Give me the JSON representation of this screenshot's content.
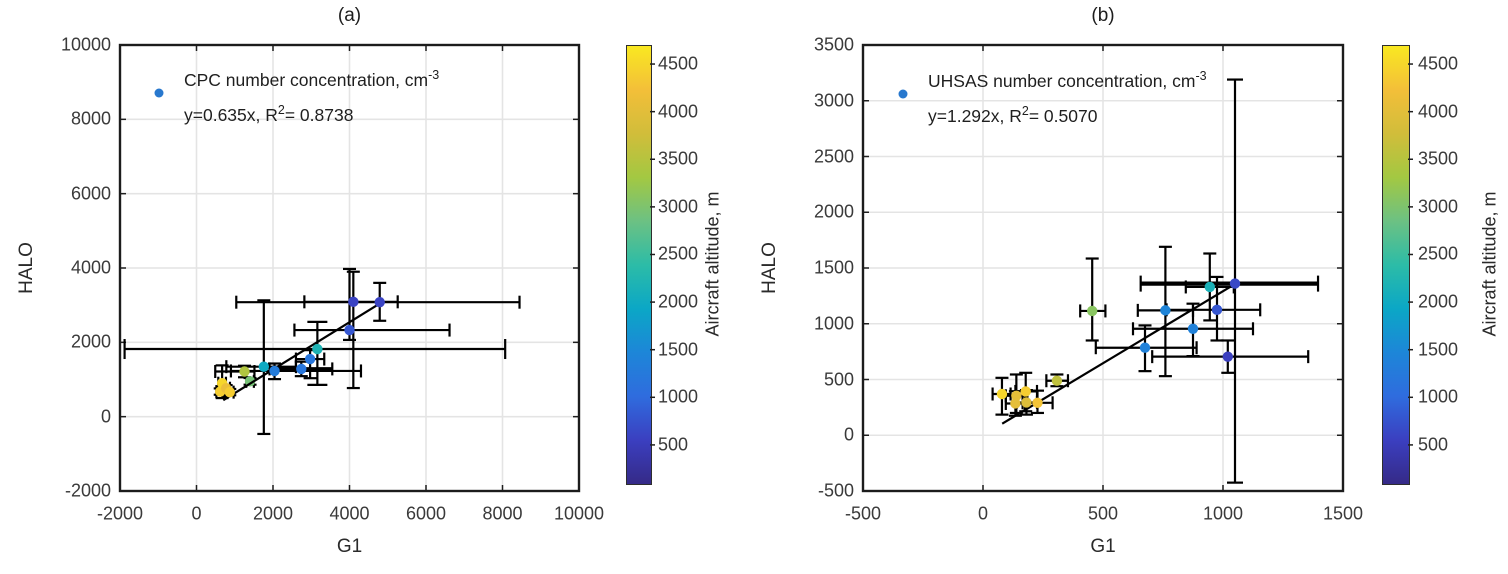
{
  "figure": {
    "background": "#ffffff"
  },
  "colors": {
    "axis_box": "#1c1c1c",
    "grid": "#e4e4e4",
    "tick_mark": "#1f1f1f",
    "tick_label": "#3a3a3a",
    "errorbar": "#000000",
    "fit_line": "#000000",
    "legend_marker": "#2878ce"
  },
  "parula_stops": [
    "#352a87",
    "#3b3fc0",
    "#2f6cde",
    "#1d86d8",
    "#0ba7c6",
    "#2cbca7",
    "#6cc183",
    "#a3c842",
    "#d1bd3a",
    "#f3bf39",
    "#f9e821"
  ],
  "colorbar": {
    "label": "Aircraft altitude, m",
    "vmin": 100,
    "vmax": 4700,
    "ticks": [
      500,
      1000,
      1500,
      2000,
      2500,
      3000,
      3500,
      4000,
      4500
    ]
  },
  "chart_data": [
    {
      "type": "scatter",
      "panel": "a",
      "title": "(a)",
      "xlabel": "G1",
      "ylabel": "HALO",
      "xlim": [
        -2000,
        10000
      ],
      "ylim": [
        -2000,
        10000
      ],
      "xticks": [
        -2000,
        0,
        2000,
        4000,
        6000,
        8000,
        10000
      ],
      "yticks": [
        -2000,
        0,
        2000,
        4000,
        6000,
        8000,
        10000
      ],
      "grid": true,
      "legend": {
        "marker_color": "#2878ce",
        "series": "CPC number concentration, cm",
        "series_sup": "-3",
        "fit": "y=0.635x, R",
        "fit_sup": "2",
        "fit_rest": "= 0.8738"
      },
      "fit_line": {
        "slope": 0.635,
        "x_start": 700,
        "x_end": 4790
      },
      "points": [
        {
          "x": 620,
          "y": 675,
          "alt": 4400,
          "xe": [
            520,
            720
          ],
          "ye": [
            590,
            760
          ]
        },
        {
          "x": 670,
          "y": 900,
          "alt": 4500,
          "xe": [
            570,
            770
          ],
          "ye": [
            500,
            1380
          ]
        },
        {
          "x": 775,
          "y": 765,
          "alt": 4150,
          "xe": [
            675,
            875
          ],
          "ye": [
            680,
            850
          ]
        },
        {
          "x": 870,
          "y": 660,
          "alt": 4400,
          "xe": [
            770,
            970
          ],
          "ye": [
            575,
            745
          ]
        },
        {
          "x": 1255,
          "y": 1215,
          "alt": 3450,
          "xe": [
            490,
            1515
          ],
          "ye": [
            1060,
            1370
          ]
        },
        {
          "x": 1400,
          "y": 950,
          "alt": 2950,
          "xe": [
            1300,
            1500
          ],
          "ye": [
            860,
            1040
          ],
          "under": true
        },
        {
          "x": 1760,
          "y": 1345,
          "alt": 2000,
          "xe": [
            780,
            2600
          ],
          "ye": [
            -465,
            3130
          ]
        },
        {
          "x": 2040,
          "y": 1230,
          "alt": 1300,
          "xe": [
            900,
            4300
          ],
          "ye": [
            1010,
            1430
          ]
        },
        {
          "x": 2740,
          "y": 1285,
          "alt": 1200,
          "xe": [
            1910,
            3550
          ],
          "ye": [
            1090,
            1480
          ],
          "xlw": 3.5
        },
        {
          "x": 2970,
          "y": 1550,
          "alt": 1200,
          "xe": [
            2600,
            3340
          ],
          "ye": [
            1035,
            1790
          ]
        },
        {
          "x": 3160,
          "y": 1820,
          "alt": 2200,
          "xe": [
            -1880,
            8070
          ],
          "ye": [
            855,
            2550
          ],
          "cap": 20
        },
        {
          "x": 4000,
          "y": 2330,
          "alt": 800,
          "xe": [
            2560,
            6615
          ],
          "ye": [
            2065,
            3975
          ]
        },
        {
          "x": 4100,
          "y": 3090,
          "alt": 600,
          "xe": [
            2820,
            5260
          ],
          "ye": [
            770,
            3900
          ]
        },
        {
          "x": 4790,
          "y": 3080,
          "alt": 600,
          "xe": [
            1040,
            8445
          ],
          "ye": [
            2580,
            3600
          ]
        }
      ]
    },
    {
      "type": "scatter",
      "panel": "b",
      "title": "(b)",
      "xlabel": "G1",
      "ylabel": "HALO",
      "xlim": [
        -500,
        1500
      ],
      "ylim": [
        -500,
        3500
      ],
      "xticks": [
        -500,
        0,
        500,
        1000,
        1500
      ],
      "yticks": [
        -500,
        0,
        500,
        1000,
        1500,
        2000,
        2500,
        3000,
        3500
      ],
      "grid": true,
      "legend": {
        "marker_color": "#2878ce",
        "series": "UHSAS number concentration, cm",
        "series_sup": "-3",
        "fit": "y=1.292x, R",
        "fit_sup": "2",
        "fit_rest": "= 0.5070"
      },
      "fit_line": {
        "slope": 1.292,
        "x_start": 80,
        "x_end": 1060
      },
      "points": [
        {
          "x": 79,
          "y": 370,
          "alt": 4500,
          "xe": [
            40,
            115
          ],
          "ye": [
            185,
            515
          ]
        },
        {
          "x": 139,
          "y": 354,
          "alt": 4050,
          "xe": [
            95,
            185
          ],
          "ye": [
            200,
            545
          ]
        },
        {
          "x": 178,
          "y": 393,
          "alt": 4400,
          "xe": [
            135,
            225
          ],
          "ye": [
            215,
            560
          ]
        },
        {
          "x": 135,
          "y": 285,
          "alt": 4050,
          "xe": [
            95,
            175
          ],
          "ye": [
            175,
            395
          ]
        },
        {
          "x": 181,
          "y": 294,
          "alt": 3950,
          "xe": [
            140,
            225
          ],
          "ye": [
            185,
            405
          ]
        },
        {
          "x": 227,
          "y": 291,
          "alt": 4300,
          "xe": [
            165,
            290
          ],
          "ye": [
            200,
            400
          ]
        },
        {
          "x": 308,
          "y": 489,
          "alt": 3600,
          "xe": [
            264,
            354
          ],
          "ye": [
            440,
            545
          ],
          "under": true
        },
        {
          "x": 455,
          "y": 1115,
          "alt": 3100,
          "xe": [
            405,
            510
          ],
          "ye": [
            850,
            1585
          ]
        },
        {
          "x": 675,
          "y": 785,
          "alt": 1400,
          "xe": [
            470,
            890
          ],
          "ye": [
            575,
            985
          ]
        },
        {
          "x": 760,
          "y": 1120,
          "alt": 1450,
          "xe": [
            645,
            875
          ],
          "ye": [
            530,
            1690
          ]
        },
        {
          "x": 875,
          "y": 955,
          "alt": 1400,
          "xe": [
            625,
            1125
          ],
          "ye": [
            710,
            1180
          ]
        },
        {
          "x": 975,
          "y": 1125,
          "alt": 800,
          "xe": [
            765,
            1155
          ],
          "ye": [
            850,
            1420
          ]
        },
        {
          "x": 945,
          "y": 1330,
          "alt": 2150,
          "xe": [
            845,
            1045
          ],
          "ye": [
            1030,
            1630
          ]
        },
        {
          "x": 1050,
          "y": 1360,
          "alt": 650,
          "xe": [
            657,
            1396
          ],
          "ye": [
            -425,
            3190
          ],
          "xlw": 4.2,
          "cap": 16
        },
        {
          "x": 1020,
          "y": 705,
          "alt": 550,
          "xe": [
            705,
            1355
          ],
          "ye": [
            560,
            850
          ]
        }
      ]
    }
  ]
}
